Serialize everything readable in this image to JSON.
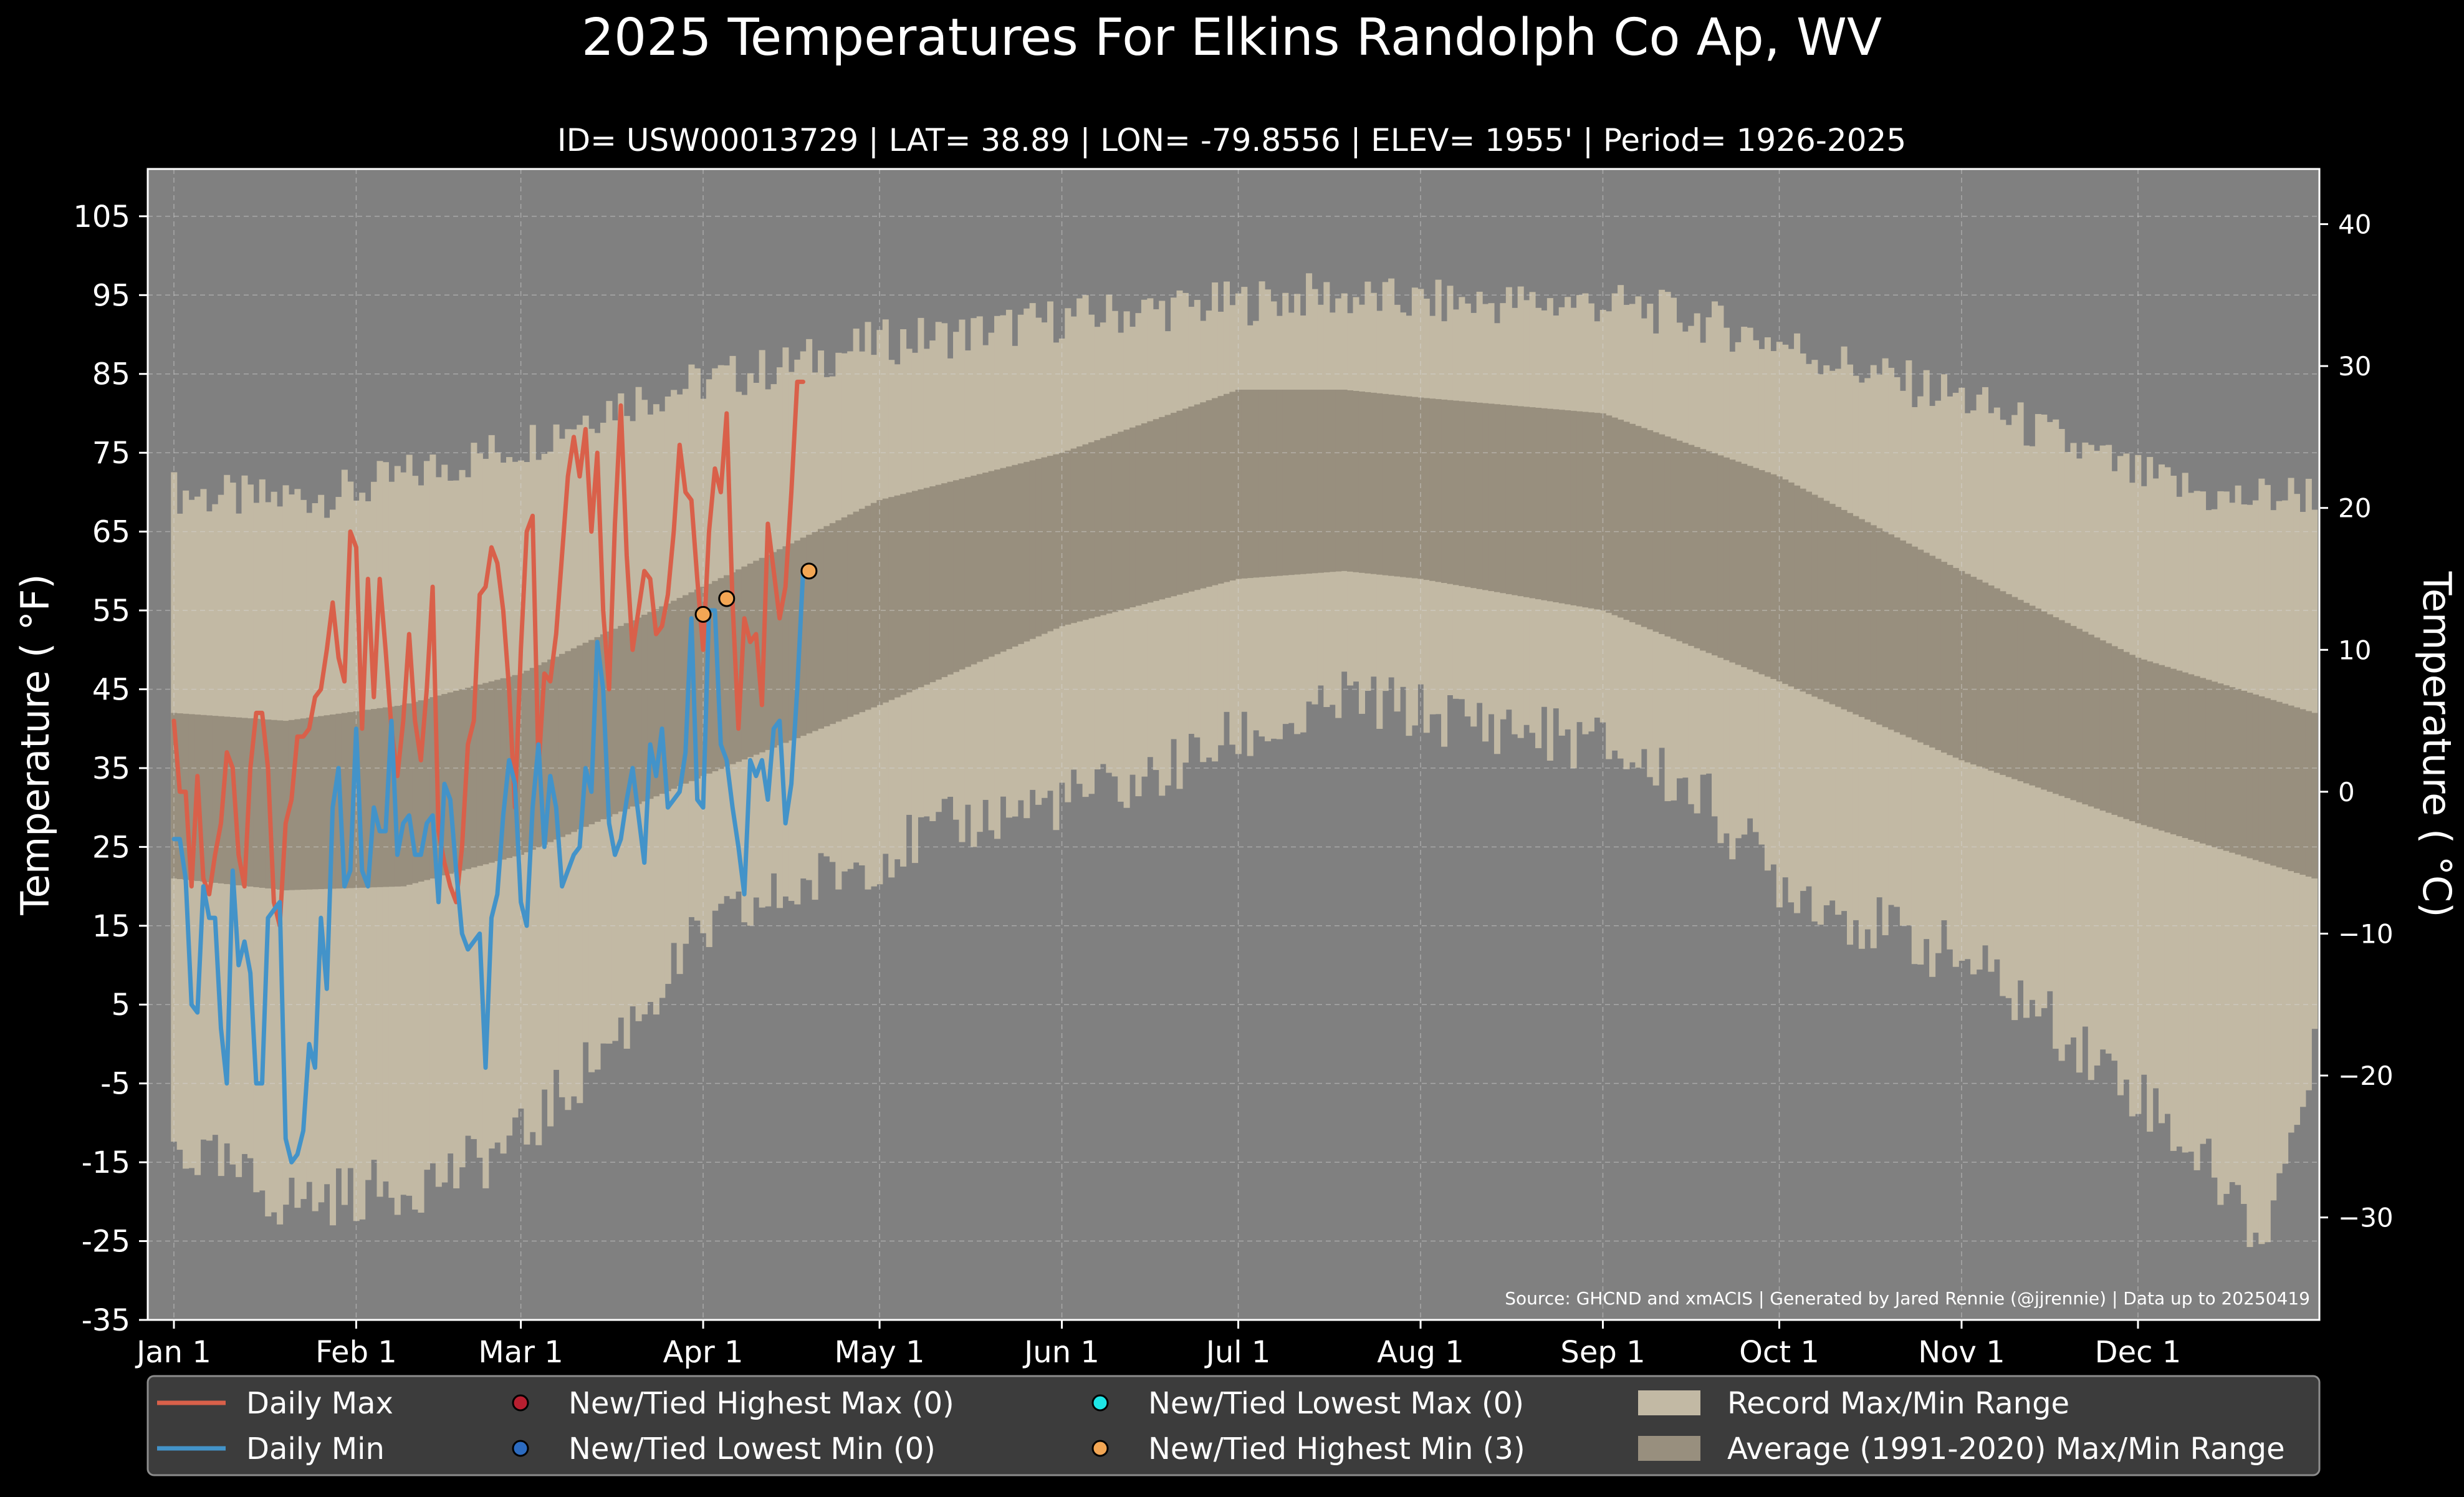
{
  "chart_data": {
    "type": "line",
    "title": "2025 Temperatures For Elkins Randolph Co Ap, WV",
    "subtitle": "ID= USW00013729 | LAT= 38.89 | LON= -79.8556 | ELEV= 1955' | Period= 1926-2025",
    "ylabel_left": "Temperature ($^\\circ$F)",
    "ylabel_left_display": "Temperature ( °F)",
    "ylabel_right_display": "Temperature ( °C)",
    "ylim_f": [
      -35,
      111
    ],
    "yticks_f": [
      "105",
      "95",
      "85",
      "75",
      "65",
      "55",
      "45",
      "35",
      "25",
      "15",
      "5",
      "-5",
      "-15",
      "-25",
      "-35"
    ],
    "yticks_c": [
      "40",
      "30",
      "20",
      "10",
      "0",
      "−10",
      "−20",
      "−30"
    ],
    "yticks_c_values": [
      40,
      30,
      20,
      10,
      0,
      -10,
      -20,
      -30
    ],
    "x_day_range": [
      1,
      365
    ],
    "month_ticks": [
      {
        "label": "Jan 1",
        "day": 1
      },
      {
        "label": "Feb 1",
        "day": 32
      },
      {
        "label": "Mar 1",
        "day": 60
      },
      {
        "label": "Apr 1",
        "day": 91
      },
      {
        "label": "May 1",
        "day": 121
      },
      {
        "label": "Jun 1",
        "day": 152
      },
      {
        "label": "Jul 1",
        "day": 182
      },
      {
        "label": "Aug 1",
        "day": 213
      },
      {
        "label": "Sep 1",
        "day": 244
      },
      {
        "label": "Oct 1",
        "day": 274
      },
      {
        "label": "Nov 1",
        "day": 305
      },
      {
        "label": "Dec 1",
        "day": 335
      }
    ],
    "grid": true,
    "legend_position": "bottom",
    "source_note": "Source: GHCND and xmACIS | Generated by Jared Rennie (@jjrennie) | Data up to 20250419",
    "legend": [
      {
        "label": "Daily Max",
        "kind": "line",
        "color": "#d9604a"
      },
      {
        "label": "Daily Min",
        "kind": "line",
        "color": "#4393c9"
      },
      {
        "label": "New/Tied Highest Max (0)",
        "kind": "dot",
        "color": "#b81f30"
      },
      {
        "label": "New/Tied Lowest Min (0)",
        "kind": "dot",
        "color": "#2c6bc0"
      },
      {
        "label": "New/Tied Lowest Max (0)",
        "kind": "dot",
        "color": "#1ee6e6"
      },
      {
        "label": "New/Tied Highest Min (3)",
        "kind": "dot",
        "color": "#f2a654"
      },
      {
        "label": "Record Max/Min Range",
        "kind": "patch",
        "color": "#c2b9a4"
      },
      {
        "label": "Average (1991-2020) Max/Min Range",
        "kind": "patch",
        "color": "#988f7e"
      }
    ],
    "average_range": {
      "name": "Average (1991-2020) Max/Min Range",
      "days": [
        1,
        20,
        40,
        60,
        91,
        121,
        152,
        182,
        200,
        213,
        244,
        274,
        305,
        335,
        365
      ],
      "max": [
        42,
        41,
        43,
        47,
        58,
        69,
        75,
        83,
        83,
        82,
        80,
        72,
        60,
        49,
        42
      ],
      "min": [
        21,
        19.5,
        20,
        24,
        34,
        43,
        53,
        59,
        60,
        59,
        55,
        46,
        36,
        28,
        21
      ]
    },
    "record_max": {
      "name": "Record Max",
      "days": [
        1,
        15,
        31,
        45,
        60,
        75,
        91,
        105,
        121,
        135,
        152,
        165,
        182,
        195,
        213,
        230,
        244,
        260,
        274,
        290,
        305,
        320,
        335,
        350,
        365
      ],
      "values": [
        70,
        69,
        70,
        73,
        76,
        81,
        84,
        86,
        89,
        90,
        92,
        93,
        94,
        95,
        94,
        94,
        94,
        92,
        89,
        85,
        82,
        77,
        72,
        69,
        70
      ]
    },
    "record_min": {
      "name": "Record Min",
      "days": [
        1,
        10,
        20,
        31,
        40,
        50,
        60,
        70,
        80,
        91,
        105,
        121,
        135,
        152,
        165,
        182,
        195,
        200,
        213,
        230,
        244,
        260,
        274,
        290,
        305,
        320,
        335,
        350,
        356,
        365
      ],
      "values": [
        -13,
        -16,
        -20,
        -19,
        -18,
        -16,
        -12,
        -4,
        4,
        14,
        19,
        24,
        28,
        31,
        33,
        39,
        41,
        44,
        42,
        40,
        38,
        32,
        21,
        15,
        11,
        3,
        -6,
        -18,
        -25,
        -2
      ]
    },
    "series": [
      {
        "name": "Daily Max",
        "color": "#d9604a",
        "values": [
          41,
          32,
          32,
          20,
          34,
          21,
          19,
          24,
          28,
          37,
          35,
          24,
          20,
          35,
          42,
          42,
          35,
          18,
          15,
          28,
          31,
          39,
          39,
          40,
          44,
          45,
          50,
          56,
          49,
          46,
          65,
          63,
          40,
          59,
          44,
          59,
          50,
          40,
          34,
          41,
          52,
          41,
          36,
          45,
          58,
          27,
          23,
          20,
          18,
          25,
          38,
          41,
          57,
          58,
          63,
          61,
          55,
          45,
          30,
          50,
          65,
          67,
          35,
          47,
          46,
          52,
          62,
          72,
          77,
          72,
          78,
          65,
          75,
          55,
          45,
          66,
          81,
          62,
          50,
          55,
          60,
          59,
          52,
          53,
          57,
          65,
          76,
          70,
          69,
          59,
          50,
          65,
          73,
          70,
          80,
          56,
          40,
          54,
          51,
          52,
          43,
          66,
          60,
          54,
          58,
          70,
          84,
          84
        ]
      },
      {
        "name": "Daily Min",
        "color": "#4393c9",
        "values": [
          26,
          26,
          21,
          5,
          4,
          20,
          16,
          16,
          2,
          -5,
          22,
          10,
          13,
          9,
          -5,
          -5,
          16,
          17,
          18,
          -12,
          -15,
          -14,
          -11,
          0,
          -3,
          16,
          7,
          30,
          35,
          20,
          22,
          40,
          22,
          20,
          30,
          27,
          27,
          41,
          24,
          28,
          29,
          24,
          24,
          28,
          29,
          18,
          33,
          31,
          22,
          14,
          12,
          13,
          14,
          -3,
          16,
          19,
          29,
          36,
          33,
          18,
          15,
          30,
          38,
          25,
          34,
          30,
          20,
          22,
          24,
          25,
          35,
          32,
          51,
          45,
          28,
          24,
          26,
          31,
          35,
          29,
          23,
          38,
          34,
          40,
          30,
          31,
          32,
          37,
          54,
          31,
          30,
          55,
          55,
          38,
          36,
          30,
          25,
          19,
          36,
          34,
          36,
          31,
          40,
          41,
          28,
          33,
          45,
          60
        ]
      }
    ],
    "record_points": [
      {
        "name": "New/Tied Highest Min",
        "day": 91,
        "value": 54.5
      },
      {
        "name": "New/Tied Highest Min",
        "day": 95,
        "value": 56.5
      },
      {
        "name": "New/Tied Highest Min",
        "day": 109,
        "value": 60
      }
    ]
  }
}
